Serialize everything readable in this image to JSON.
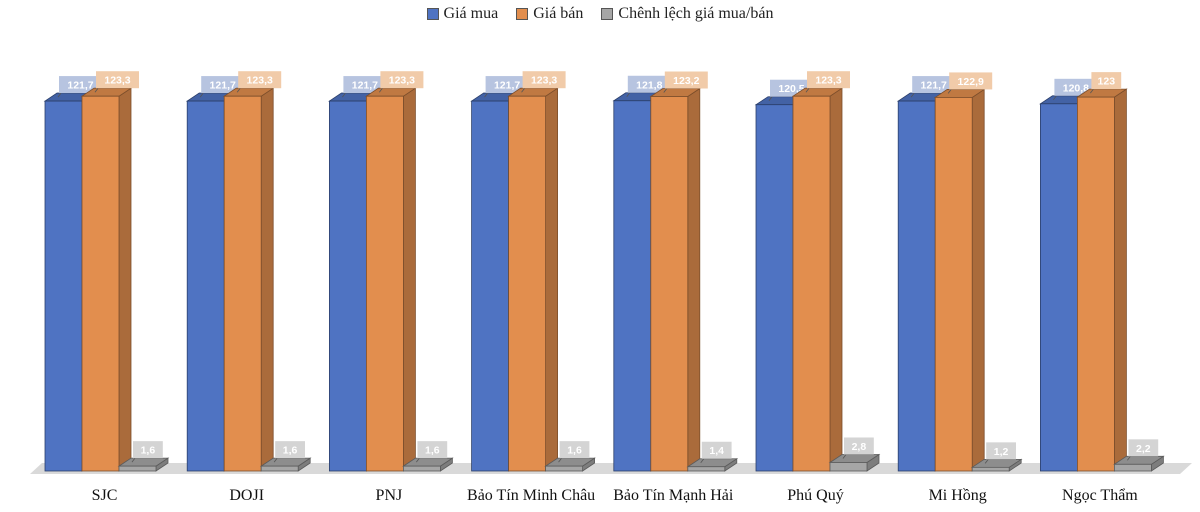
{
  "chart_data": {
    "type": "bar",
    "categories": [
      "SJC",
      "DOJI",
      "PNJ",
      "Bảo Tín Minh Châu",
      "Bảo Tín Mạnh Hải",
      "Phú Quý",
      "Mi Hồng",
      "Ngọc Thẩm"
    ],
    "series": [
      {
        "name": "Giá mua",
        "values": [
          121.7,
          121.7,
          121.7,
          121.7,
          121.8,
          120.5,
          121.7,
          120.8
        ],
        "labels": [
          "121,7",
          "121,7",
          "121,7",
          "121,7",
          "121,8",
          "120,5",
          "121,7",
          "120,8"
        ]
      },
      {
        "name": "Giá bán",
        "values": [
          123.3,
          123.3,
          123.3,
          123.3,
          123.2,
          123.3,
          122.9,
          123
        ],
        "labels": [
          "123,3",
          "123,3",
          "123,3",
          "123,3",
          "123,2",
          "123,3",
          "122,9",
          "123"
        ]
      },
      {
        "name": "Chênh lệch giá mua/bán",
        "values": [
          1.6,
          1.6,
          1.6,
          1.6,
          1.4,
          2.8,
          1.2,
          2.2
        ],
        "labels": [
          "1,6",
          "1,6",
          "1,6",
          "1,6",
          "1,4",
          "2,8",
          "1,2",
          "2,2"
        ]
      }
    ],
    "colors": {
      "Giá mua": "#4f73c2",
      "Giá bán": "#e28e4e",
      "Chênh lệch giá mua/bán": "#a6a6a6",
      "label_bg_mua": "#b7c4e0",
      "label_bg_ban": "#f1cba9",
      "label_bg_cl": "#d4d4d4"
    },
    "legend_position": "top",
    "style": "3d-clustered-column",
    "grid": false,
    "ylim": [
      0,
      130
    ]
  }
}
